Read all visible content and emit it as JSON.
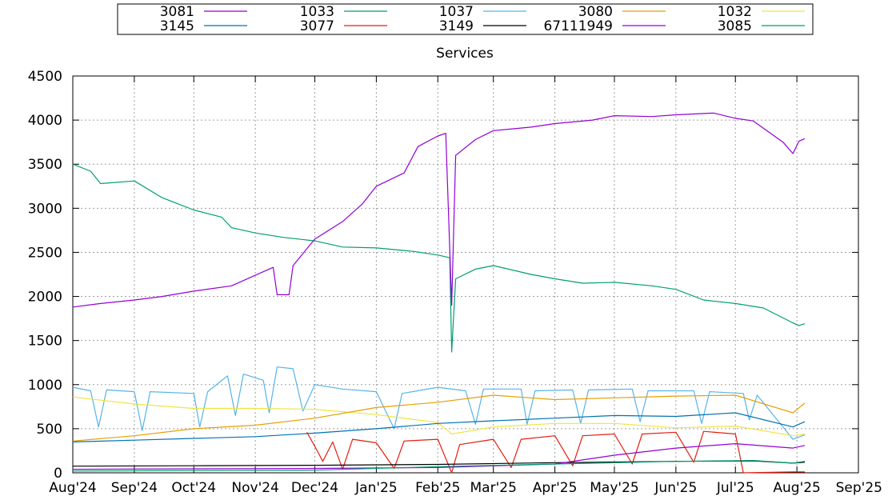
{
  "chart_data": {
    "type": "line",
    "title": "Services",
    "xlabel": "",
    "ylabel": "",
    "ylim": [
      0,
      4500
    ],
    "yticks": [
      0,
      500,
      1000,
      1500,
      2000,
      2500,
      3000,
      3500,
      4000,
      4500
    ],
    "xlim": [
      "2024-08-01",
      "2025-09-01"
    ],
    "xticks": [
      {
        "date": "2024-08-01",
        "label": "Aug'24"
      },
      {
        "date": "2024-09-01",
        "label": "Sep'24"
      },
      {
        "date": "2024-10-01",
        "label": "Oct'24"
      },
      {
        "date": "2024-11-01",
        "label": "Nov'24"
      },
      {
        "date": "2024-12-01",
        "label": "Dec'24"
      },
      {
        "date": "2025-01-01",
        "label": "Jan'25"
      },
      {
        "date": "2025-02-01",
        "label": "Feb'25"
      },
      {
        "date": "2025-03-01",
        "label": "Mar'25"
      },
      {
        "date": "2025-04-01",
        "label": "Apr'25"
      },
      {
        "date": "2025-05-01",
        "label": "May'25"
      },
      {
        "date": "2025-06-01",
        "label": "Jun'25"
      },
      {
        "date": "2025-07-01",
        "label": "Jul'25"
      },
      {
        "date": "2025-08-01",
        "label": "Aug'25"
      },
      {
        "date": "2025-09-01",
        "label": "Sep'25"
      }
    ],
    "grid": true,
    "legend_position": "top",
    "series": [
      {
        "name": "3081",
        "color": "#9400d3",
        "points": [
          [
            "2024-08-01",
            1880
          ],
          [
            "2024-08-15",
            1920
          ],
          [
            "2024-09-01",
            1960
          ],
          [
            "2024-09-15",
            2000
          ],
          [
            "2024-10-01",
            2060
          ],
          [
            "2024-10-20",
            2120
          ],
          [
            "2024-11-01",
            2240
          ],
          [
            "2024-11-10",
            2330
          ],
          [
            "2024-11-12",
            2020
          ],
          [
            "2024-11-18",
            2020
          ],
          [
            "2024-11-20",
            2350
          ],
          [
            "2024-12-01",
            2650
          ],
          [
            "2024-12-15",
            2850
          ],
          [
            "2024-12-25",
            3050
          ],
          [
            "2025-01-01",
            3250
          ],
          [
            "2025-01-15",
            3400
          ],
          [
            "2025-01-22",
            3700
          ],
          [
            "2025-02-01",
            3820
          ],
          [
            "2025-02-05",
            3850
          ],
          [
            "2025-02-08",
            1900
          ],
          [
            "2025-02-10",
            3600
          ],
          [
            "2025-02-20",
            3780
          ],
          [
            "2025-03-01",
            3880
          ],
          [
            "2025-03-20",
            3920
          ],
          [
            "2025-04-01",
            3960
          ],
          [
            "2025-04-20",
            4000
          ],
          [
            "2025-05-01",
            4050
          ],
          [
            "2025-05-20",
            4040
          ],
          [
            "2025-06-01",
            4060
          ],
          [
            "2025-06-20",
            4080
          ],
          [
            "2025-07-01",
            4020
          ],
          [
            "2025-07-10",
            3990
          ],
          [
            "2025-07-25",
            3750
          ],
          [
            "2025-07-30",
            3620
          ],
          [
            "2025-08-02",
            3760
          ],
          [
            "2025-08-05",
            3790
          ]
        ]
      },
      {
        "name": "1033",
        "color": "#009e73",
        "points": [
          [
            "2024-08-01",
            3500
          ],
          [
            "2024-08-10",
            3420
          ],
          [
            "2024-08-15",
            3280
          ],
          [
            "2024-09-01",
            3310
          ],
          [
            "2024-09-15",
            3120
          ],
          [
            "2024-10-01",
            2980
          ],
          [
            "2024-10-15",
            2900
          ],
          [
            "2024-10-20",
            2780
          ],
          [
            "2024-11-01",
            2720
          ],
          [
            "2024-11-15",
            2670
          ],
          [
            "2024-12-01",
            2630
          ],
          [
            "2024-12-15",
            2560
          ],
          [
            "2025-01-01",
            2550
          ],
          [
            "2025-01-20",
            2510
          ],
          [
            "2025-02-01",
            2470
          ],
          [
            "2025-02-07",
            2440
          ],
          [
            "2025-02-08",
            1370
          ],
          [
            "2025-02-10",
            2200
          ],
          [
            "2025-02-20",
            2310
          ],
          [
            "2025-03-01",
            2350
          ],
          [
            "2025-03-20",
            2250
          ],
          [
            "2025-04-01",
            2200
          ],
          [
            "2025-04-15",
            2150
          ],
          [
            "2025-05-01",
            2160
          ],
          [
            "2025-05-20",
            2120
          ],
          [
            "2025-06-01",
            2080
          ],
          [
            "2025-06-15",
            1960
          ],
          [
            "2025-07-01",
            1920
          ],
          [
            "2025-07-15",
            1870
          ],
          [
            "2025-07-30",
            1700
          ],
          [
            "2025-08-02",
            1670
          ],
          [
            "2025-08-05",
            1690
          ]
        ]
      },
      {
        "name": "1037",
        "color": "#56b4e9",
        "points": [
          [
            "2024-08-01",
            970
          ],
          [
            "2024-08-10",
            930
          ],
          [
            "2024-08-14",
            520
          ],
          [
            "2024-08-18",
            940
          ],
          [
            "2024-09-01",
            920
          ],
          [
            "2024-09-05",
            480
          ],
          [
            "2024-09-09",
            920
          ],
          [
            "2024-10-01",
            900
          ],
          [
            "2024-10-04",
            520
          ],
          [
            "2024-10-08",
            920
          ],
          [
            "2024-10-18",
            1100
          ],
          [
            "2024-10-22",
            650
          ],
          [
            "2024-10-26",
            1120
          ],
          [
            "2024-11-05",
            1050
          ],
          [
            "2024-11-08",
            680
          ],
          [
            "2024-11-12",
            1200
          ],
          [
            "2024-11-20",
            1180
          ],
          [
            "2024-11-25",
            700
          ],
          [
            "2024-12-01",
            1000
          ],
          [
            "2024-12-15",
            950
          ],
          [
            "2025-01-01",
            920
          ],
          [
            "2025-01-10",
            500
          ],
          [
            "2025-01-14",
            900
          ],
          [
            "2025-02-01",
            970
          ],
          [
            "2025-02-15",
            930
          ],
          [
            "2025-02-20",
            550
          ],
          [
            "2025-02-24",
            950
          ],
          [
            "2025-03-15",
            950
          ],
          [
            "2025-03-18",
            550
          ],
          [
            "2025-03-22",
            930
          ],
          [
            "2025-04-10",
            940
          ],
          [
            "2025-04-14",
            560
          ],
          [
            "2025-04-18",
            940
          ],
          [
            "2025-05-10",
            950
          ],
          [
            "2025-05-14",
            580
          ],
          [
            "2025-05-18",
            930
          ],
          [
            "2025-06-10",
            930
          ],
          [
            "2025-06-14",
            560
          ],
          [
            "2025-06-18",
            920
          ],
          [
            "2025-07-05",
            900
          ],
          [
            "2025-07-08",
            600
          ],
          [
            "2025-07-12",
            880
          ],
          [
            "2025-07-30",
            380
          ],
          [
            "2025-08-05",
            430
          ]
        ]
      },
      {
        "name": "3080",
        "color": "#e69f00",
        "points": [
          [
            "2024-08-01",
            360
          ],
          [
            "2024-09-01",
            420
          ],
          [
            "2024-10-01",
            500
          ],
          [
            "2024-11-01",
            540
          ],
          [
            "2024-12-01",
            620
          ],
          [
            "2025-01-01",
            740
          ],
          [
            "2025-02-01",
            800
          ],
          [
            "2025-03-01",
            880
          ],
          [
            "2025-04-01",
            830
          ],
          [
            "2025-05-01",
            850
          ],
          [
            "2025-06-01",
            870
          ],
          [
            "2025-07-01",
            880
          ],
          [
            "2025-07-30",
            680
          ],
          [
            "2025-08-05",
            790
          ]
        ]
      },
      {
        "name": "1032",
        "color": "#f0e442",
        "points": [
          [
            "2024-08-01",
            860
          ],
          [
            "2024-09-01",
            780
          ],
          [
            "2024-10-01",
            730
          ],
          [
            "2024-11-01",
            730
          ],
          [
            "2024-12-01",
            720
          ],
          [
            "2025-01-01",
            660
          ],
          [
            "2025-02-01",
            570
          ],
          [
            "2025-02-08",
            440
          ],
          [
            "2025-03-01",
            520
          ],
          [
            "2025-04-01",
            560
          ],
          [
            "2025-05-01",
            560
          ],
          [
            "2025-06-01",
            510
          ],
          [
            "2025-07-01",
            530
          ],
          [
            "2025-07-30",
            420
          ],
          [
            "2025-08-05",
            440
          ]
        ]
      },
      {
        "name": "3145",
        "color": "#0072b2",
        "points": [
          [
            "2024-08-01",
            350
          ],
          [
            "2024-09-01",
            370
          ],
          [
            "2024-10-01",
            390
          ],
          [
            "2024-11-01",
            410
          ],
          [
            "2024-12-01",
            450
          ],
          [
            "2025-01-01",
            500
          ],
          [
            "2025-02-01",
            560
          ],
          [
            "2025-03-01",
            590
          ],
          [
            "2025-04-01",
            620
          ],
          [
            "2025-05-01",
            650
          ],
          [
            "2025-06-01",
            640
          ],
          [
            "2025-07-01",
            680
          ],
          [
            "2025-07-30",
            520
          ],
          [
            "2025-08-05",
            580
          ]
        ]
      },
      {
        "name": "3077",
        "color": "#e51e10",
        "points": [
          [
            "2024-11-27",
            460
          ],
          [
            "2024-12-01",
            300
          ],
          [
            "2024-12-05",
            130
          ],
          [
            "2024-12-10",
            350
          ],
          [
            "2024-12-15",
            40
          ],
          [
            "2024-12-20",
            380
          ],
          [
            "2025-01-01",
            340
          ],
          [
            "2025-01-10",
            50
          ],
          [
            "2025-01-15",
            360
          ],
          [
            "2025-02-01",
            380
          ],
          [
            "2025-02-08",
            0
          ],
          [
            "2025-02-12",
            320
          ],
          [
            "2025-03-01",
            380
          ],
          [
            "2025-03-10",
            60
          ],
          [
            "2025-03-15",
            380
          ],
          [
            "2025-04-01",
            420
          ],
          [
            "2025-04-10",
            80
          ],
          [
            "2025-04-15",
            420
          ],
          [
            "2025-05-01",
            440
          ],
          [
            "2025-05-10",
            100
          ],
          [
            "2025-05-15",
            440
          ],
          [
            "2025-06-01",
            460
          ],
          [
            "2025-06-10",
            120
          ],
          [
            "2025-06-15",
            470
          ],
          [
            "2025-07-01",
            440
          ],
          [
            "2025-07-05",
            0
          ],
          [
            "2025-07-30",
            10
          ],
          [
            "2025-08-05",
            10
          ]
        ]
      },
      {
        "name": "3149",
        "color": "#000000",
        "points": [
          [
            "2024-08-01",
            75
          ],
          [
            "2024-10-01",
            80
          ],
          [
            "2024-12-01",
            85
          ],
          [
            "2025-02-01",
            95
          ],
          [
            "2025-04-01",
            115
          ],
          [
            "2025-06-01",
            130
          ],
          [
            "2025-07-10",
            135
          ],
          [
            "2025-07-30",
            110
          ],
          [
            "2025-08-05",
            120
          ]
        ]
      },
      {
        "name": "67111949",
        "color": "#9400d3",
        "points": [
          [
            "2024-08-01",
            40
          ],
          [
            "2024-12-01",
            50
          ],
          [
            "2025-02-01",
            60
          ],
          [
            "2025-04-01",
            100
          ],
          [
            "2025-05-01",
            200
          ],
          [
            "2025-06-01",
            280
          ],
          [
            "2025-07-01",
            330
          ],
          [
            "2025-07-30",
            280
          ],
          [
            "2025-08-05",
            310
          ]
        ]
      },
      {
        "name": "3085",
        "color": "#009e73",
        "points": [
          [
            "2024-08-01",
            20
          ],
          [
            "2024-12-01",
            30
          ],
          [
            "2025-02-01",
            70
          ],
          [
            "2025-04-01",
            100
          ],
          [
            "2025-06-01",
            130
          ],
          [
            "2025-07-10",
            140
          ],
          [
            "2025-07-30",
            110
          ],
          [
            "2025-08-05",
            130
          ]
        ]
      }
    ]
  }
}
